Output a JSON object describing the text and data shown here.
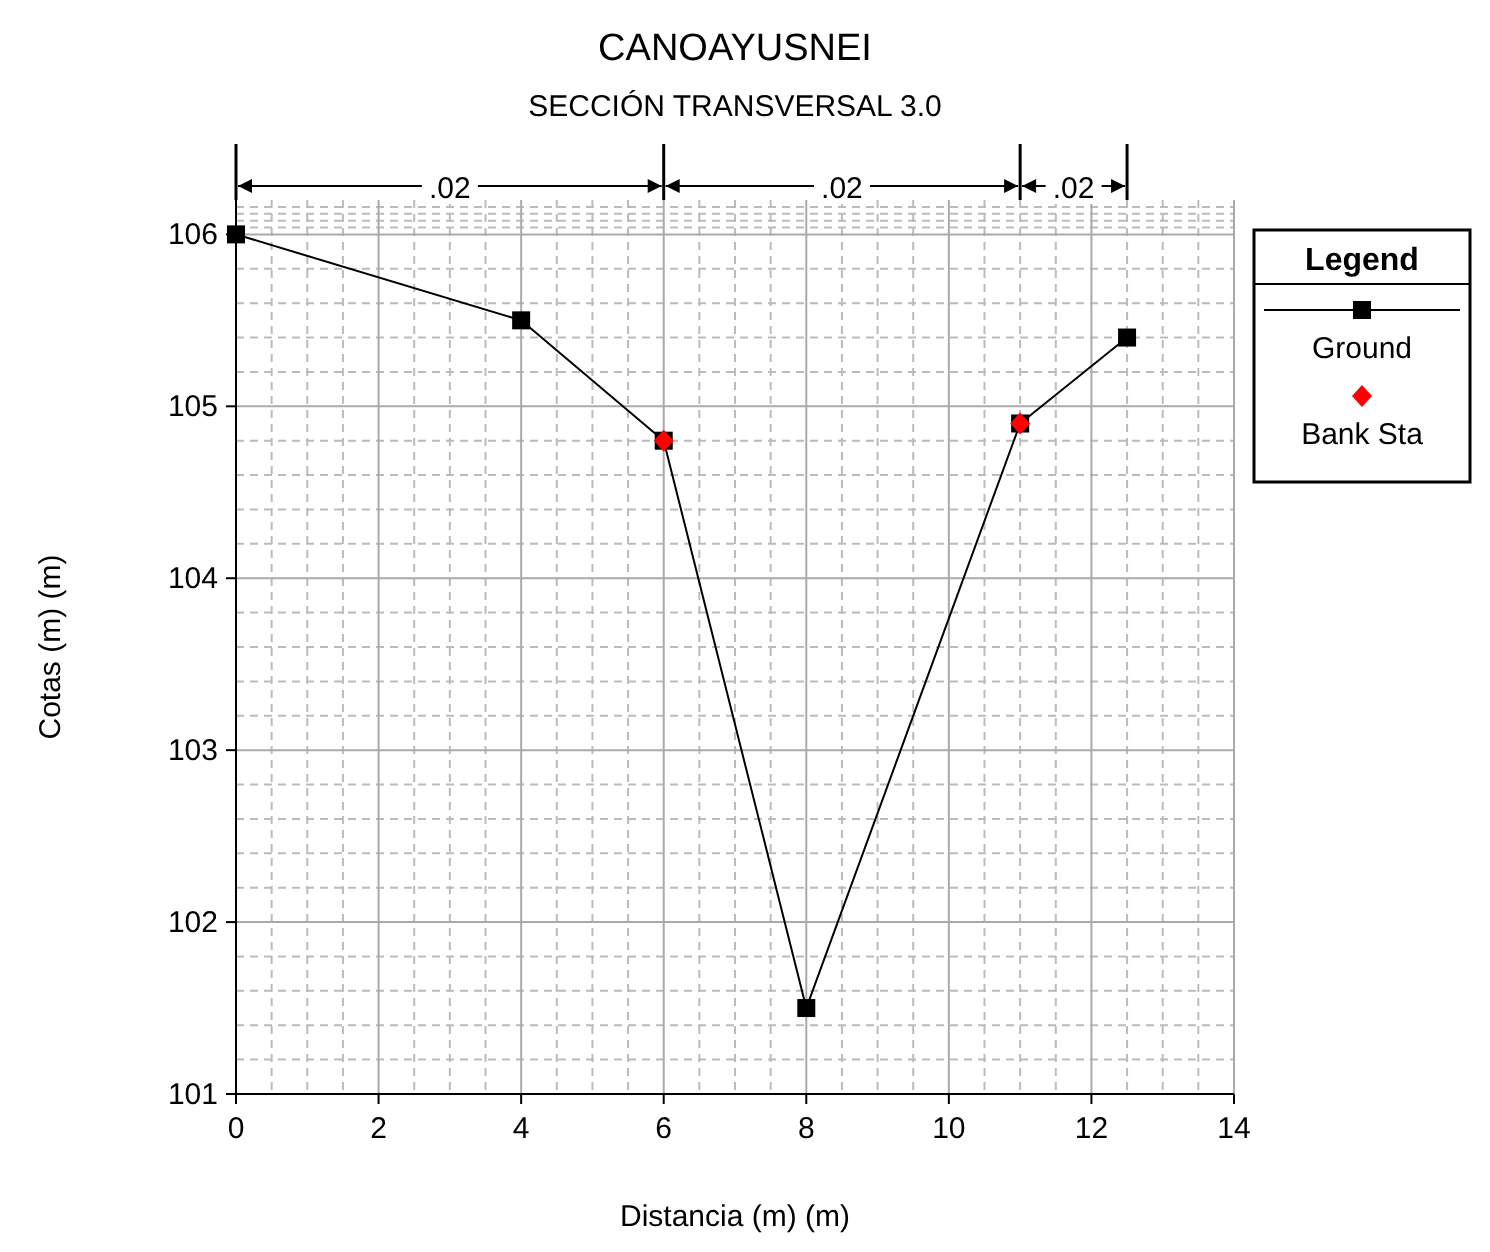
{
  "chart_data": {
    "type": "line",
    "title": "CANOAYUSNEI",
    "subtitle": "SECCIÓN TRANSVERSAL 3.0",
    "xlabel": "Distancia (m) (m)",
    "ylabel": "Cotas (m) (m)",
    "legend_title": "Legend",
    "annotations": [
      ".02",
      ".02",
      ".02"
    ],
    "series": [
      {
        "name": "Ground",
        "color": "#000000",
        "marker": "square",
        "x": [
          0,
          4,
          6,
          8,
          11,
          12.5
        ],
        "values": [
          106.0,
          105.5,
          104.8,
          101.5,
          104.9,
          105.4
        ]
      },
      {
        "name": "Bank Sta",
        "type": "scatter",
        "color": "#ff0000",
        "marker": "diamond",
        "x": [
          6,
          11
        ],
        "values": [
          104.8,
          104.9
        ]
      }
    ],
    "xlim": [
      0,
      14
    ],
    "ylim": [
      101,
      106.2
    ],
    "xticks": [
      0,
      2,
      4,
      6,
      8,
      10,
      12,
      14
    ],
    "yticks": [
      101,
      102,
      103,
      104,
      105,
      106
    ],
    "grid": true,
    "legend": "top right"
  }
}
